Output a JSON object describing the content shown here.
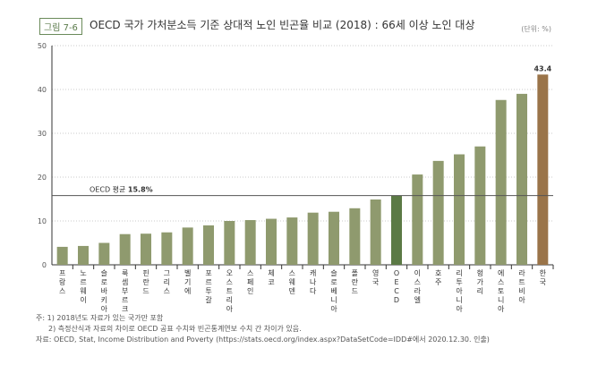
{
  "figure_label": "그림 7-6",
  "title": "OECD 국가 가처분소득 기준 상대적 노인 빈곤율 비교 (2018) : 66세 이상 노인 대상",
  "unit": "(단위: %)",
  "notes": [
    "주: 1) 2018년도 자료가 있는 국가만 포함",
    "2) 측정산식과 자료의 차이로 OECD 공표 수치와 빈곤통계연보 수치 간 차이가 있음.",
    "자료: OECD, Stat, Income Distribution and Poverty (https://stats.oecd.org/index.aspx?DataSetCode=IDD#에서 2020.12.30. 인출)"
  ],
  "chart_data": {
    "type": "bar",
    "categories": [
      "프랑스",
      "노르웨이",
      "슬로바키아",
      "룩셈부르크",
      "핀란드",
      "그리스",
      "벨기에",
      "포르투갈",
      "오스트리아",
      "스페인",
      "체코",
      "스웨덴",
      "캐나다",
      "슬로베니아",
      "폴란드",
      "영국",
      "OECD",
      "이스라엘",
      "호주",
      "리투아니아",
      "헝가리",
      "에스토니아",
      "라트비아",
      "한국"
    ],
    "values": [
      4.1,
      4.3,
      5.0,
      7.0,
      7.1,
      7.4,
      8.5,
      9.0,
      10.0,
      10.2,
      10.5,
      10.8,
      11.9,
      12.1,
      12.9,
      14.9,
      15.8,
      20.6,
      23.7,
      25.2,
      27.0,
      37.6,
      39.0,
      43.4
    ],
    "ylim": [
      0,
      50
    ],
    "yticks": [
      0,
      10,
      20,
      30,
      40,
      50
    ],
    "grid": true,
    "data_labels": {
      "한국": "43.4"
    },
    "reference_line": {
      "value": 15.8,
      "label": "OECD 평균",
      "value_label": "15.8%"
    },
    "colors": {
      "default": "#8f9a6e",
      "oecd": "#5b7a45",
      "korea": "#9a7449",
      "grid": "#bbb",
      "reference": "#555"
    }
  }
}
